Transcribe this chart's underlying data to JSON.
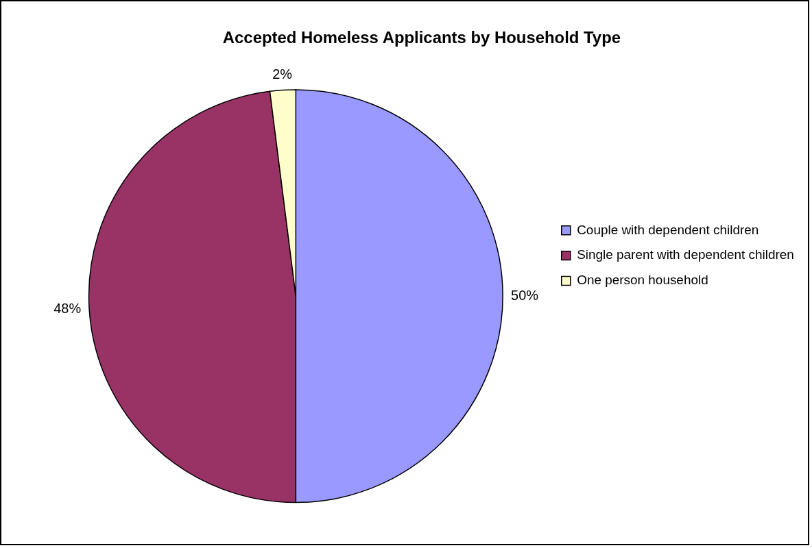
{
  "chart_data": {
    "type": "pie",
    "title": "Accepted Homeless Applicants by Household Type",
    "categories": [
      "Couple with dependent children",
      "Single parent with dependent children",
      "One person household"
    ],
    "values": [
      50,
      48,
      2
    ],
    "colors": [
      "#9999ff",
      "#993366",
      "#ffffcc"
    ],
    "value_labels": [
      "50%",
      "48%",
      "2%"
    ],
    "legend": "right"
  }
}
